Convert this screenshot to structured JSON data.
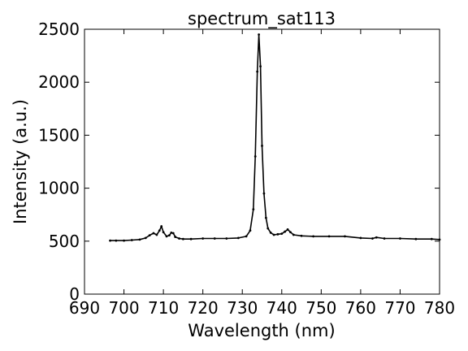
{
  "chart_data": {
    "type": "line",
    "title": "spectrum_sat113",
    "xlabel": "Wavelength (nm)",
    "ylabel": "Intensity (a.u.)",
    "xlim": [
      690,
      780
    ],
    "ylim": [
      0,
      2500
    ],
    "xticks": [
      690,
      700,
      710,
      720,
      730,
      740,
      750,
      760,
      770,
      780
    ],
    "yticks": [
      0,
      500,
      1000,
      1500,
      2000,
      2500
    ],
    "grid": false,
    "line_color": "#000000",
    "marker": "dot",
    "series": [
      {
        "x": [
          696.5,
          698,
          700,
          702,
          704,
          705.5,
          706.5,
          707.5,
          708.3,
          709,
          709.5,
          710,
          710.8,
          711.5,
          712,
          712.5,
          713,
          714,
          715,
          717,
          720,
          723,
          726,
          729,
          731,
          732,
          732.8,
          733.3,
          733.8,
          734.2,
          734.6,
          735,
          735.5,
          736,
          736.5,
          737.2,
          738,
          739,
          740,
          740.8,
          741.5,
          742.2,
          743,
          745,
          748,
          752,
          756,
          760,
          763,
          764,
          766,
          770,
          774,
          778,
          780
        ],
        "y": [
          505,
          505,
          505,
          510,
          515,
          530,
          555,
          575,
          560,
          600,
          640,
          585,
          545,
          555,
          580,
          575,
          540,
          525,
          520,
          520,
          525,
          525,
          525,
          530,
          545,
          600,
          800,
          1300,
          2100,
          2450,
          2150,
          1400,
          950,
          720,
          620,
          580,
          560,
          565,
          570,
          590,
          610,
          585,
          560,
          550,
          545,
          545,
          545,
          530,
          525,
          535,
          525,
          525,
          520,
          520,
          515
        ]
      }
    ]
  }
}
